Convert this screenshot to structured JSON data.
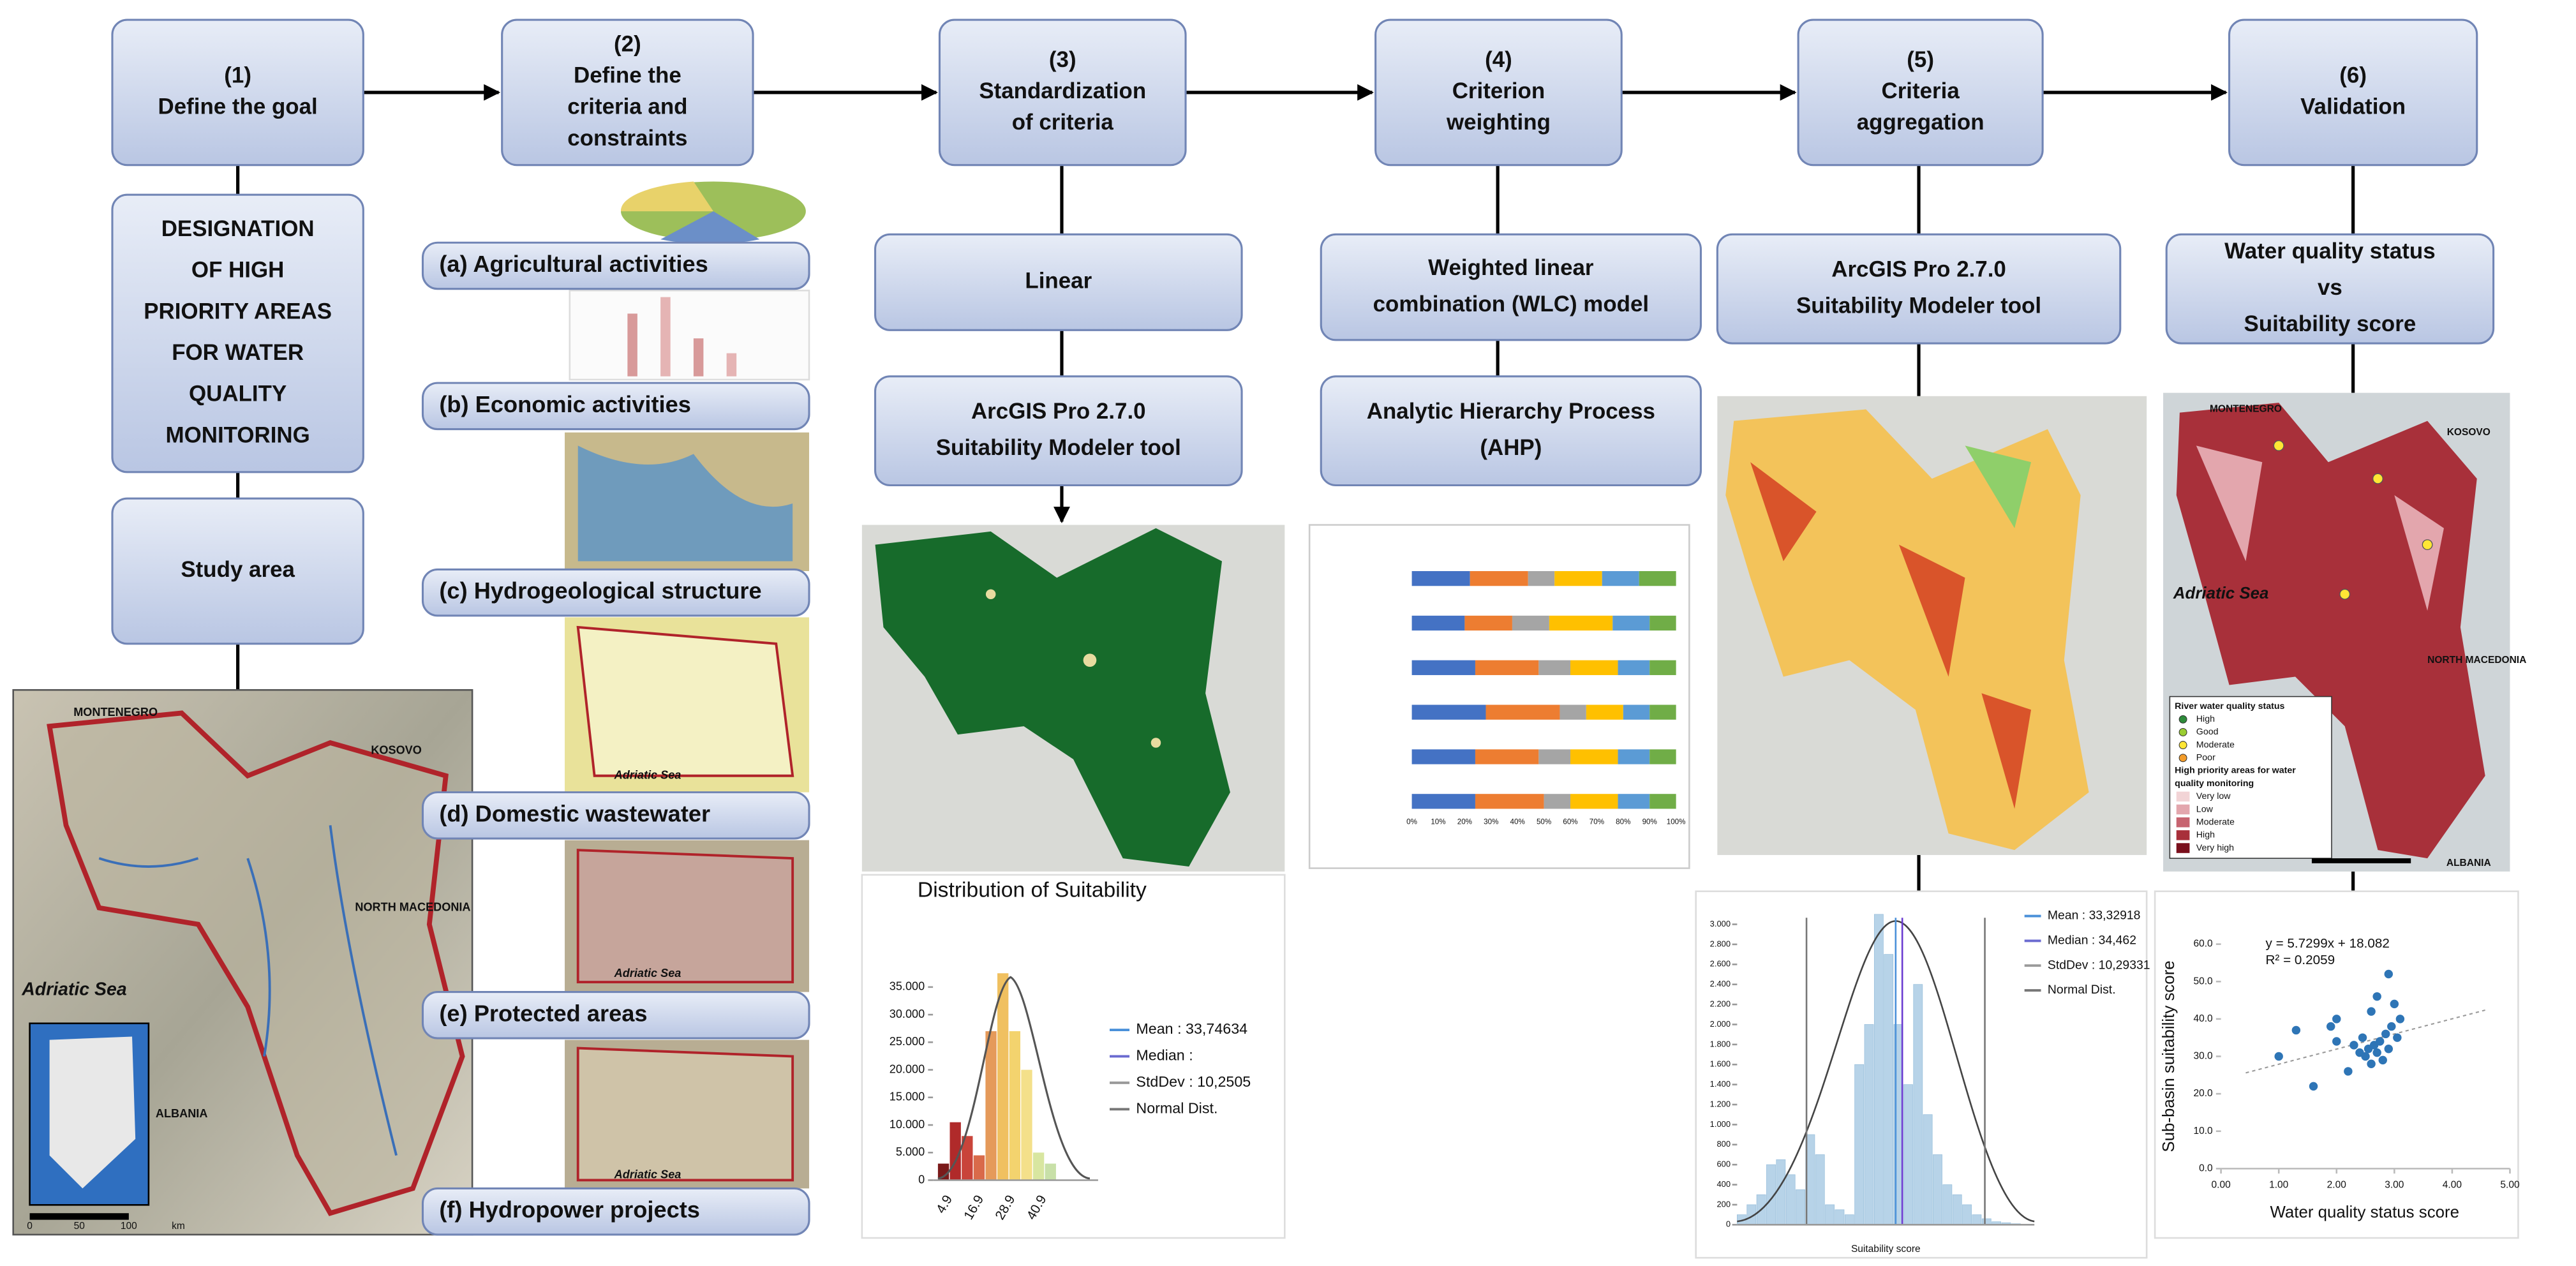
{
  "steps": [
    {
      "number": "(1)",
      "label": [
        "Define the goal"
      ]
    },
    {
      "number": "(2)",
      "label": [
        "Define the",
        "criteria and",
        "constraints"
      ]
    },
    {
      "number": "(3)",
      "label": [
        "Standardization",
        "of criteria"
      ]
    },
    {
      "number": "(4)",
      "label": [
        "Criterion",
        "weighting"
      ]
    },
    {
      "number": "(5)",
      "label": [
        "Criteria",
        "aggregation"
      ]
    },
    {
      "number": "(6)",
      "label": [
        "Validation"
      ]
    }
  ],
  "goal": [
    "DESIGNATION",
    "OF HIGH",
    "PRIORITY AREAS",
    "FOR WATER",
    "QUALITY",
    "MONITORING"
  ],
  "study_area": "Study area",
  "study_map": {
    "labels": [
      "MONTENEGRO",
      "KOSOVO",
      "Adriatic Sea",
      "NORTH MACEDONIA",
      "ALBANIA"
    ],
    "scale": [
      "0",
      "50",
      "100",
      "km"
    ]
  },
  "criteria": [
    "(a) Agricultural activities",
    "(b) Economic activities",
    "(c) Hydrogeological structure",
    "(d) Domestic wastewater",
    "(e) Protected areas",
    "(f) Hydropower projects"
  ],
  "criteria_maps": [
    "Adriatic Sea",
    "Adriatic Sea",
    "Adriatic Sea"
  ],
  "standardization": {
    "boxes": [
      [
        "Linear"
      ],
      [
        "ArcGIS Pro 2.7.0",
        "Suitability Modeler tool"
      ]
    ],
    "histogram": {
      "title": "Distribution of Suitability",
      "legend": [
        "Mean : 33,74634",
        "Median :",
        "StdDev : 10,2505",
        "Normal Dist."
      ],
      "yticks": [
        0,
        {
          "value": 5000,
          "label": "5.000"
        },
        {
          "value": 10000,
          "label": "10.000"
        },
        {
          "value": 15000,
          "label": "15.000"
        },
        {
          "value": 20000,
          "label": "20.000"
        },
        {
          "value": 25000,
          "label": "25.000"
        },
        {
          "value": 30000,
          "label": "30.000"
        },
        {
          "value": 35000,
          "label": "35.000"
        }
      ],
      "xticks": [
        "4.9",
        "16.9",
        "28.9",
        "40.9"
      ],
      "bars": [
        3000,
        10500,
        8000,
        4500,
        27000,
        37500,
        27000,
        20000,
        5000,
        3000
      ]
    }
  },
  "weighting": {
    "boxes": [
      [
        "Weighted linear",
        "combination (WLC) model"
      ],
      [
        "Analytic Hierarchy Process",
        "(AHP)"
      ]
    ],
    "xticks": [
      "0%",
      "10%",
      "20%",
      "30%",
      "40%",
      "50%",
      "60%",
      "70%",
      "80%",
      "90%",
      "100%"
    ],
    "rows": [
      [
        22,
        22,
        10,
        18,
        14,
        14
      ],
      [
        20,
        18,
        14,
        24,
        14,
        10
      ],
      [
        24,
        24,
        12,
        18,
        12,
        10
      ],
      [
        28,
        28,
        10,
        14,
        10,
        10
      ],
      [
        24,
        24,
        12,
        18,
        12,
        10
      ],
      [
        24,
        26,
        10,
        18,
        12,
        10
      ]
    ]
  },
  "aggregation": {
    "boxes": [
      [
        "ArcGIS Pro 2.7.0",
        "Suitability Modeler tool"
      ]
    ],
    "histogram": {
      "legend": [
        "Mean : 33,32918",
        "Median : 34,462",
        "StdDev : 10,29331",
        "Normal Dist."
      ],
      "yticks": [
        0,
        200,
        400,
        600,
        800,
        {
          "value": 1000,
          "label": "1.000"
        },
        {
          "value": 1200,
          "label": "1.200"
        },
        {
          "value": 1400,
          "label": "1.400"
        },
        {
          "value": 1600,
          "label": "1.600"
        },
        {
          "value": 1800,
          "label": "1.800"
        },
        {
          "value": 2000,
          "label": "2.000"
        },
        {
          "value": 2200,
          "label": "2.200"
        },
        {
          "value": 2400,
          "label": "2.400"
        },
        {
          "value": 2600,
          "label": "2.600"
        },
        {
          "value": 2800,
          "label": "2.800"
        },
        {
          "value": 3000,
          "label": "3.000"
        }
      ],
      "x_label": "Suitability score",
      "bars": [
        100,
        200,
        300,
        600,
        650,
        500,
        350,
        900,
        700,
        200,
        150,
        100,
        1600,
        2000,
        3100,
        2700,
        2000,
        1400,
        2400,
        1100,
        700,
        400,
        300,
        200,
        100,
        60,
        30,
        20,
        10,
        5
      ]
    }
  },
  "validation": {
    "boxes": [
      [
        "Water quality status",
        "vs",
        "Suitability score"
      ]
    ],
    "map_labels": [
      "MONTENEGRO",
      "KOSOVO",
      "Adriatic Sea",
      "NORTH MACEDONIA",
      "ALBANIA"
    ],
    "legend": [
      "River water quality status",
      "High",
      "Good",
      "Moderate",
      "Poor",
      "High priority areas for water",
      "quality monitoring",
      "Very low",
      "Low",
      "Moderate",
      "High",
      "Very high"
    ],
    "scatter": {
      "equation": "y = 5.7299x + 18.082",
      "r2": "R² = 0.2059",
      "y_label": "Sub-basin suitability score",
      "x_label": "Water quality status score",
      "xticks": [
        {
          "value": 0,
          "label": "0.00"
        },
        {
          "value": 1,
          "label": "1.00"
        },
        {
          "value": 2,
          "label": "2.00"
        },
        {
          "value": 3,
          "label": "3.00"
        },
        {
          "value": 4,
          "label": "4.00"
        },
        {
          "value": 5,
          "label": "5.00"
        }
      ],
      "yticks": [
        {
          "value": 0,
          "label": "0.0"
        },
        {
          "value": 10,
          "label": "10.0"
        },
        {
          "value": 20,
          "label": "20.0"
        },
        {
          "value": 30,
          "label": "30.0"
        },
        {
          "value": 40,
          "label": "40.0"
        },
        {
          "value": 50,
          "label": "50.0"
        },
        {
          "value": 60,
          "label": "60.0"
        }
      ],
      "x": [
        1.0,
        1.3,
        1.9,
        2.0,
        2.2,
        2.3,
        2.4,
        2.45,
        2.5,
        2.55,
        2.6,
        2.65,
        2.7,
        2.75,
        2.8,
        2.85,
        2.9,
        2.95,
        3.0,
        3.05,
        3.1,
        2.6,
        2.7,
        2.9,
        1.6,
        2.0
      ],
      "y": [
        30,
        37,
        38,
        34,
        26,
        33,
        31,
        35,
        30,
        32,
        28,
        33,
        31,
        34,
        29,
        36,
        32,
        38,
        44,
        35,
        40,
        42,
        46,
        52,
        22,
        40
      ]
    }
  }
}
